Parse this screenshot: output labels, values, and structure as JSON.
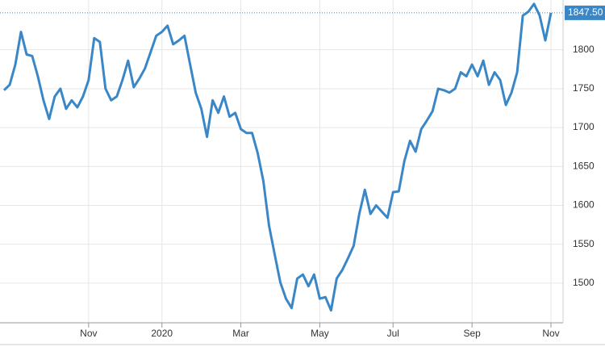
{
  "chart_data": {
    "type": "line",
    "categories": [
      null,
      null,
      null,
      null,
      null,
      null,
      null,
      null,
      null,
      null,
      null,
      null,
      null,
      null,
      null,
      "Nov",
      null,
      null,
      null,
      null,
      null,
      null,
      null,
      null,
      null,
      null,
      null,
      null,
      "2020",
      null,
      null,
      null,
      null,
      null,
      null,
      null,
      null,
      null,
      null,
      null,
      null,
      null,
      "Mar",
      null,
      null,
      null,
      null,
      null,
      null,
      null,
      null,
      null,
      null,
      null,
      null,
      null,
      "May",
      null,
      null,
      null,
      null,
      null,
      null,
      null,
      null,
      null,
      null,
      null,
      null,
      "Jul",
      null,
      null,
      null,
      null,
      null,
      null,
      null,
      null,
      null,
      null,
      null,
      null,
      null,
      "Sep",
      null,
      null,
      null,
      null,
      null,
      null,
      null,
      null,
      null,
      null,
      null,
      null,
      null,
      "Nov"
    ],
    "series": [
      {
        "color": "#3a87c8",
        "values": [
          1748,
          1755,
          1781,
          1823,
          1794,
          1792,
          1766,
          1735,
          1711,
          1740,
          1750,
          1724,
          1735,
          1726,
          1740,
          1761,
          1815,
          1810,
          1750,
          1735,
          1740,
          1761,
          1786,
          1752,
          1763,
          1776,
          1797,
          1818,
          1823,
          1831,
          1807,
          1812,
          1818,
          1781,
          1745,
          1724,
          1688,
          1735,
          1719,
          1740,
          1714,
          1719,
          1698,
          1693,
          1693,
          1667,
          1631,
          1574,
          1537,
          1501,
          1480,
          1468,
          1506,
          1511,
          1496,
          1511,
          1480,
          1482,
          1465,
          1506,
          1517,
          1532,
          1548,
          1589,
          1620,
          1589,
          1600,
          1592,
          1584,
          1617,
          1618,
          1657,
          1683,
          1669,
          1698,
          1709,
          1721,
          1750,
          1748,
          1745,
          1750,
          1771,
          1766,
          1781,
          1766,
          1786,
          1755,
          1771,
          1761,
          1729,
          1745,
          1771,
          1844,
          1849,
          1859,
          1844,
          1812,
          1847.5
        ]
      }
    ],
    "ylim": [
      1449,
      1864
    ],
    "yticks": [
      1500,
      1550,
      1600,
      1650,
      1700,
      1750,
      1800
    ],
    "last_value": {
      "value": 1847.5,
      "label": "1847.50"
    },
    "grid": true
  }
}
